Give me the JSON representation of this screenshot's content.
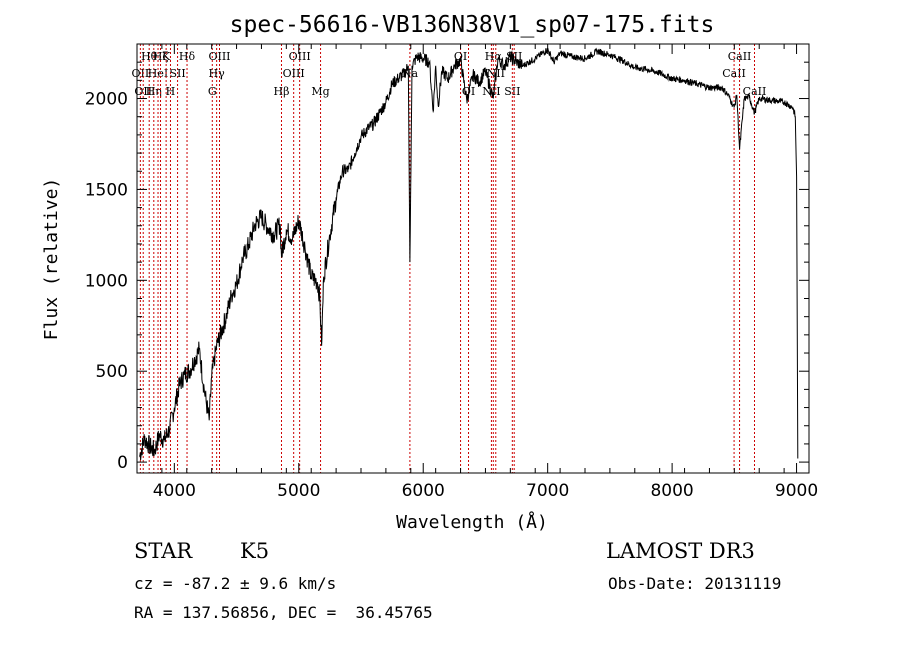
{
  "chart_data": {
    "type": "line",
    "title": "spec-56616-VB136N38V1_sp07-175.fits",
    "xlabel": "Wavelength (Å)",
    "ylabel": "Flux (relative)",
    "xlim": [
      3700,
      9100
    ],
    "ylim": [
      -60,
      2300
    ],
    "xticks": [
      4000,
      5000,
      6000,
      7000,
      8000,
      9000
    ],
    "yticks": [
      0,
      500,
      1000,
      1500,
      2000
    ],
    "line_color": "#000000",
    "marker_color": "#cc0000",
    "series": [
      {
        "x": [
          3720,
          3760,
          3800,
          3840,
          3880,
          3920,
          3960,
          4000,
          4040,
          4080,
          4120,
          4160,
          4200,
          4240,
          4280,
          4300,
          4340,
          4380,
          4420,
          4460,
          4500,
          4550,
          4600,
          4650,
          4700,
          4750,
          4800,
          4850,
          4861,
          4900,
          4950,
          5000,
          5050,
          5100,
          5150,
          5170,
          5183,
          5200,
          5250,
          5300,
          5350,
          5400,
          5450,
          5500,
          5550,
          5600,
          5650,
          5700,
          5750,
          5800,
          5850,
          5880,
          5893,
          5910,
          5950,
          6000,
          6050,
          6080,
          6100,
          6120,
          6150,
          6200,
          6250,
          6300,
          6350,
          6400,
          6450,
          6500,
          6563,
          6600,
          6650,
          6700,
          6750,
          6800,
          6900,
          7000,
          7050,
          7100,
          7200,
          7300,
          7400,
          7500,
          7600,
          7700,
          7800,
          7900,
          8000,
          8100,
          8200,
          8300,
          8400,
          8450,
          8498,
          8520,
          8542,
          8580,
          8620,
          8662,
          8700,
          8800,
          8900,
          8970,
          8990,
          9000,
          9010
        ],
        "y": [
          30,
          130,
          90,
          60,
          150,
          120,
          180,
          300,
          420,
          480,
          500,
          560,
          620,
          400,
          230,
          470,
          640,
          720,
          810,
          920,
          980,
          1120,
          1200,
          1310,
          1350,
          1290,
          1250,
          1310,
          1130,
          1280,
          1230,
          1330,
          1180,
          1020,
          990,
          900,
          640,
          1020,
          1250,
          1450,
          1600,
          1610,
          1700,
          1790,
          1830,
          1860,
          1920,
          1980,
          2080,
          2110,
          2140,
          2180,
          1100,
          2180,
          2230,
          2220,
          2200,
          1930,
          2180,
          1960,
          2150,
          2110,
          2180,
          2210,
          1990,
          2130,
          2090,
          2150,
          2000,
          2220,
          2180,
          2230,
          2200,
          2180,
          2220,
          2270,
          2200,
          2250,
          2230,
          2220,
          2260,
          2240,
          2210,
          2170,
          2160,
          2140,
          2110,
          2100,
          2080,
          2060,
          2060,
          2020,
          1950,
          2020,
          1720,
          2000,
          2010,
          1920,
          2000,
          1990,
          1980,
          1950,
          1900,
          1570,
          20
        ]
      }
    ],
    "line_markers": [
      {
        "wl": 3727,
        "label": "OII",
        "row": 2
      },
      {
        "wl": 3750,
        "label": "OII",
        "row": 3
      },
      {
        "wl": 3798,
        "label": "Hθ",
        "row": 1
      },
      {
        "wl": 3835,
        "label": "Hη",
        "row": 3
      },
      {
        "wl": 3869,
        "label": "HeI",
        "row": 2
      },
      {
        "wl": 3889,
        "label": "Hζ",
        "row": 1
      },
      {
        "wl": 3934,
        "label": "K",
        "row": 1
      },
      {
        "wl": 3969,
        "label": "H",
        "row": 3
      },
      {
        "wl": 4026,
        "label": "SII",
        "row": 2
      },
      {
        "wl": 4102,
        "label": "Hδ",
        "row": 1
      },
      {
        "wl": 4305,
        "label": "G",
        "row": 3
      },
      {
        "wl": 4340,
        "label": "Hγ",
        "row": 2
      },
      {
        "wl": 4363,
        "label": "OIII",
        "row": 1
      },
      {
        "wl": 4861,
        "label": "Hβ",
        "row": 3
      },
      {
        "wl": 4959,
        "label": "OIII",
        "row": 2
      },
      {
        "wl": 5007,
        "label": "OIII",
        "row": 1
      },
      {
        "wl": 5175,
        "label": "Mg",
        "row": 3
      },
      {
        "wl": 5893,
        "label": "Na",
        "row": 2
      },
      {
        "wl": 6300,
        "label": "OI",
        "row": 1
      },
      {
        "wl": 6364,
        "label": "OI",
        "row": 3
      },
      {
        "wl": 6548,
        "label": "NII",
        "row": 3
      },
      {
        "wl": 6563,
        "label": "Hα",
        "row": 1
      },
      {
        "wl": 6583,
        "label": "NII",
        "row": 2
      },
      {
        "wl": 6716,
        "label": "SII",
        "row": 3
      },
      {
        "wl": 6731,
        "label": "SII",
        "row": 1
      },
      {
        "wl": 8498,
        "label": "CaII",
        "row": 2
      },
      {
        "wl": 8542,
        "label": "CaII",
        "row": 1
      },
      {
        "wl": 8662,
        "label": "CaII",
        "row": 3
      }
    ]
  },
  "info": {
    "class_label": "STAR",
    "subclass": "K5",
    "survey": "LAMOST DR3",
    "cz": "cz = -87.2 ± 9.6 km/s",
    "obs_date": "Obs-Date: 20131119",
    "radec": "RA = 137.56856, DEC =  36.45765"
  }
}
